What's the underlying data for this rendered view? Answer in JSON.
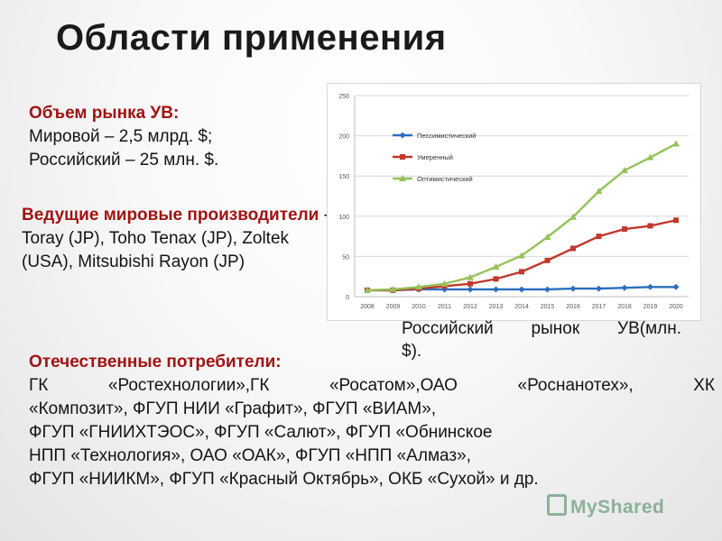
{
  "slide": {
    "title": "Области применения"
  },
  "market": {
    "heading": "Объем рынка УВ:",
    "lines": [
      "Мировой – 2,5 млрд. $;",
      "Российский – 25 млн. $."
    ]
  },
  "producers": {
    "heading": "Ведущие мировые производители",
    "text": " - Toray (JP), Toho Tenax (JP), Zoltek (USA), Mitsubishi Rayon (JP)"
  },
  "consumers": {
    "heading": "Отечественные потребители:",
    "lines": [
      "ГК «Ростехнологии»,ГК «Росатом»,ОАО «Роснанотех», ХК",
      "«Композит», ФГУП НИИ «Графит», ФГУП «ВИАМ»,",
      "ФГУП «ГНИИХТЭОС», ФГУП «Салют», ФГУП «Обнинское",
      "НПП «Технология», ОАО «ОАК», ФГУП «НПП «Алмаз»,",
      "ФГУП «НИИКМ», ФГУП «Красный Октябрь», ОКБ «Сухой» и др."
    ]
  },
  "chart_caption": {
    "line1": "Российский рынок УВ(млн.",
    "line2": "$)."
  },
  "watermark": {
    "text": "MyShared"
  },
  "chart_data": {
    "type": "line",
    "x": [
      "2008",
      "2009",
      "2010",
      "2011",
      "2012",
      "2013",
      "2014",
      "2015",
      "2016",
      "2017",
      "2018",
      "2019",
      "2020"
    ],
    "ylim": [
      0,
      250
    ],
    "yticks": [
      0,
      50,
      100,
      150,
      200,
      250
    ],
    "grid": true,
    "legend_position": "top-left",
    "series": [
      {
        "name": "Пессимистический",
        "color": "#2a6ebd",
        "marker": "diamond",
        "values": [
          8,
          8,
          9,
          9,
          9,
          9,
          9,
          9,
          10,
          10,
          11,
          12,
          12
        ]
      },
      {
        "name": "Умеренный",
        "color": "#c0392b",
        "marker": "square",
        "values": [
          8,
          8,
          10,
          13,
          16,
          22,
          31,
          45,
          60,
          75,
          84,
          88,
          95
        ]
      },
      {
        "name": "Оптимистический",
        "color": "#95c25a",
        "marker": "triangle",
        "values": [
          8,
          9,
          12,
          16,
          24,
          37,
          51,
          74,
          99,
          131,
          157,
          173,
          190
        ]
      }
    ]
  }
}
